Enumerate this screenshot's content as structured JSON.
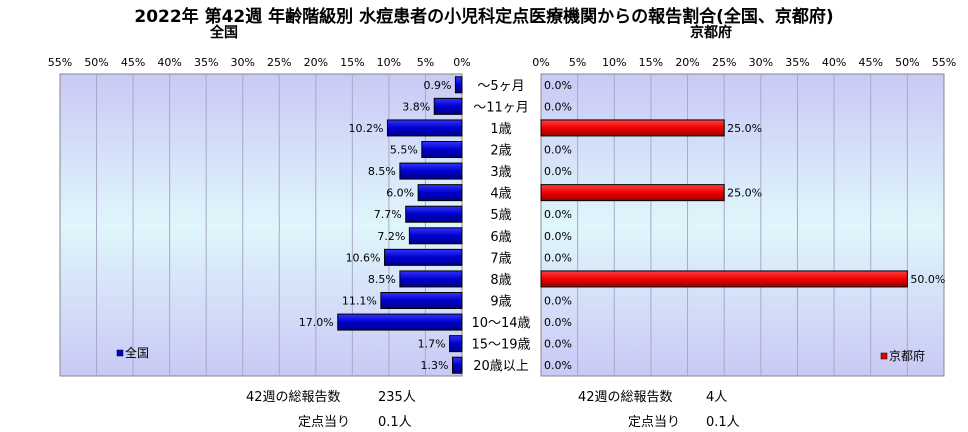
{
  "title": "2022年 第42週 年齢階級別 水痘患者の小児科定点医療機関からの報告割合(全国、京都府)",
  "panels": {
    "left_title": "全国",
    "right_title": "京都府"
  },
  "chart_data": [
    {
      "type": "bar",
      "orientation": "horizontal-reversed",
      "title": "全国",
      "categories": [
        "～5ヶ月",
        "～11ヶ月",
        "1歳",
        "2歳",
        "3歳",
        "4歳",
        "5歳",
        "6歳",
        "7歳",
        "8歳",
        "9歳",
        "10～14歳",
        "15～19歳",
        "20歳以上"
      ],
      "series": [
        {
          "name": "全国",
          "values": [
            0.9,
            3.8,
            10.2,
            5.5,
            8.5,
            6.0,
            7.7,
            7.2,
            10.6,
            8.5,
            11.1,
            17.0,
            1.7,
            1.3
          ]
        }
      ],
      "value_labels": [
        "0.9%",
        "3.8%",
        "10.2%",
        "5.5%",
        "8.5%",
        "6.0%",
        "7.7%",
        "7.2%",
        "10.6%",
        "8.5%",
        "11.1%",
        "17.0%",
        "1.7%",
        "1.3%"
      ],
      "xlim": [
        0,
        55
      ],
      "ticks": [
        "55%",
        "50%",
        "45%",
        "40%",
        "35%",
        "30%",
        "25%",
        "20%",
        "15%",
        "10%",
        "5%",
        "0%"
      ],
      "grid": true,
      "legend": "bottom-left",
      "bar_color": "#0000cc"
    },
    {
      "type": "bar",
      "orientation": "horizontal",
      "title": "京都府",
      "categories": [
        "～5ヶ月",
        "～11ヶ月",
        "1歳",
        "2歳",
        "3歳",
        "4歳",
        "5歳",
        "6歳",
        "7歳",
        "8歳",
        "9歳",
        "10～14歳",
        "15～19歳",
        "20歳以上"
      ],
      "series": [
        {
          "name": "京都府",
          "values": [
            0.0,
            0.0,
            25.0,
            0.0,
            0.0,
            25.0,
            0.0,
            0.0,
            0.0,
            50.0,
            0.0,
            0.0,
            0.0,
            0.0
          ]
        }
      ],
      "value_labels": [
        "0.0%",
        "0.0%",
        "25.0%",
        "0.0%",
        "0.0%",
        "25.0%",
        "0.0%",
        "0.0%",
        "0.0%",
        "50.0%",
        "0.0%",
        "0.0%",
        "0.0%",
        "0.0%"
      ],
      "xlim": [
        0,
        55
      ],
      "ticks": [
        "0%",
        "5%",
        "10%",
        "15%",
        "20%",
        "25%",
        "30%",
        "35%",
        "40%",
        "45%",
        "50%",
        "55%"
      ],
      "grid": true,
      "legend": "bottom-right",
      "bar_color": "#ee0000"
    }
  ],
  "footer": {
    "left_total_label": "42週の総報告数",
    "left_total_value": "235人",
    "left_per_label": "定点当り",
    "left_per_value": "0.1人",
    "right_total_label": "42週の総報告数",
    "right_total_value": "4人",
    "right_per_label": "定点当り",
    "right_per_value": "0.1人"
  }
}
